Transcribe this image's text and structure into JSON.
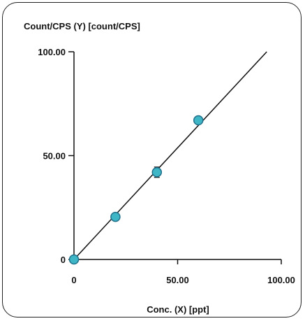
{
  "chart_data": {
    "type": "scatter",
    "ylabel": "Count/CPS (Y)  [count/CPS]",
    "xlabel": "Conc. (X) [ppt]",
    "xlim": [
      0,
      100
    ],
    "ylim": [
      0,
      100
    ],
    "x_ticks": [
      "0",
      "50.00",
      "100.00"
    ],
    "y_ticks": [
      "0",
      "50.00",
      "100.00"
    ],
    "points": [
      {
        "x": 0,
        "y": 0
      },
      {
        "x": 20,
        "y": 20.5
      },
      {
        "x": 40,
        "y": 42
      },
      {
        "x": 60,
        "y": 67
      }
    ],
    "error_bars": [
      0,
      0.5,
      2.5,
      0.5
    ],
    "fit_line": {
      "x": [
        0,
        93
      ],
      "y": [
        0,
        100
      ]
    },
    "marker_color": "#3fb6c6",
    "marker_edge": "#1f6f8a",
    "line_color": "#111111",
    "grid": false
  }
}
